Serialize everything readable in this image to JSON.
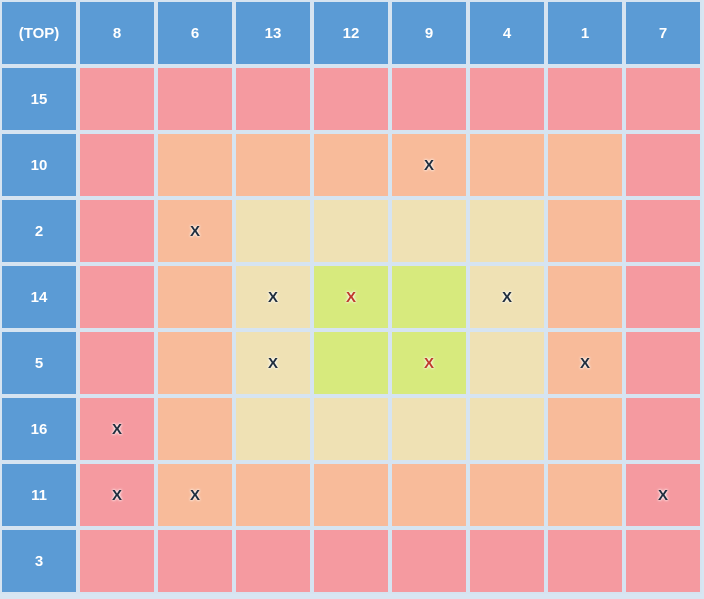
{
  "corner_label": "(TOP)",
  "columns": [
    "8",
    "6",
    "13",
    "12",
    "9",
    "4",
    "1",
    "7"
  ],
  "rows": [
    {
      "label": "15",
      "zones": [
        "red",
        "red",
        "red",
        "red",
        "red",
        "red",
        "red",
        "red"
      ],
      "marks": [
        "",
        "",
        "",
        "",
        "",
        "",
        "",
        ""
      ]
    },
    {
      "label": "10",
      "zones": [
        "red",
        "orange",
        "orange",
        "orange",
        "orange",
        "orange",
        "orange",
        "red"
      ],
      "marks": [
        "",
        "",
        "",
        "",
        "X",
        "",
        "",
        ""
      ]
    },
    {
      "label": "2",
      "zones": [
        "red",
        "orange",
        "yellow",
        "yellow",
        "yellow",
        "yellow",
        "orange",
        "red"
      ],
      "marks": [
        "",
        "X",
        "",
        "",
        "",
        "",
        "",
        ""
      ]
    },
    {
      "label": "14",
      "zones": [
        "red",
        "orange",
        "yellow",
        "green",
        "green",
        "yellow",
        "orange",
        "red"
      ],
      "marks": [
        "",
        "",
        "X",
        "X",
        "",
        "X",
        "",
        ""
      ]
    },
    {
      "label": "5",
      "zones": [
        "red",
        "orange",
        "yellow",
        "green",
        "green",
        "yellow",
        "orange",
        "red"
      ],
      "marks": [
        "",
        "",
        "X",
        "",
        "X",
        "",
        "X",
        ""
      ]
    },
    {
      "label": "16",
      "zones": [
        "red",
        "orange",
        "yellow",
        "yellow",
        "yellow",
        "yellow",
        "orange",
        "red"
      ],
      "marks": [
        "X",
        "",
        "",
        "",
        "",
        "",
        "",
        ""
      ]
    },
    {
      "label": "11",
      "zones": [
        "red",
        "orange",
        "orange",
        "orange",
        "orange",
        "orange",
        "orange",
        "red"
      ],
      "marks": [
        "X",
        "X",
        "",
        "",
        "",
        "",
        "",
        "X"
      ]
    },
    {
      "label": "3",
      "zones": [
        "red",
        "red",
        "red",
        "red",
        "red",
        "red",
        "red",
        "red"
      ],
      "marks": [
        "",
        "",
        "",
        "",
        "",
        "",
        "",
        ""
      ]
    }
  ],
  "zone_colors": {
    "red": "#f59aa0",
    "orange": "#f8bb9a",
    "yellow": "#efe1b4",
    "green": "#d7ea7d",
    "header": "#5b9bd5"
  }
}
